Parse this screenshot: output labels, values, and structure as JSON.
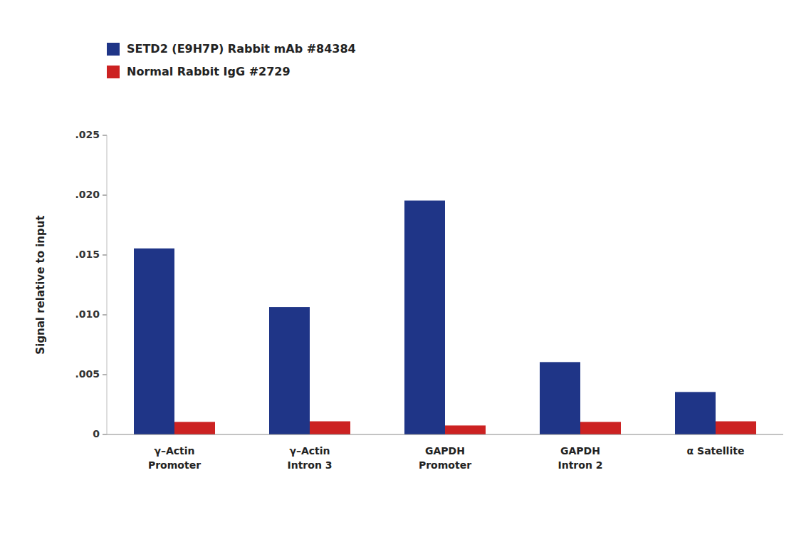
{
  "chart_data": {
    "type": "bar",
    "categories": [
      "γ–Actin\nPromoter",
      "γ–Actin\nIntron 3",
      "GAPDH\nPromoter",
      "GAPDH\nIntron 2",
      "α Satellite"
    ],
    "series": [
      {
        "name": "SETD2 (E9H7P) Rabbit mAb #84384",
        "color": "#1f3587",
        "values": [
          0.01555,
          0.01065,
          0.01955,
          0.00605,
          0.00355
        ]
      },
      {
        "name": "Normal Rabbit IgG #2729",
        "color": "#cc2222",
        "values": [
          0.00105,
          0.0011,
          0.00075,
          0.00105,
          0.0011
        ]
      }
    ],
    "ylabel": "Signal relative to input",
    "ylim": [
      0,
      0.025
    ],
    "yticks": [
      0,
      {
        "value": 0.005,
        "label": ".005"
      },
      {
        "value": 0.01,
        "label": ".010"
      },
      {
        "value": 0.015,
        "label": ".015"
      },
      {
        "value": 0.02,
        "label": ".020"
      },
      {
        "value": 0.025,
        "label": ".025"
      }
    ],
    "grid": false,
    "legend": "upper left"
  }
}
